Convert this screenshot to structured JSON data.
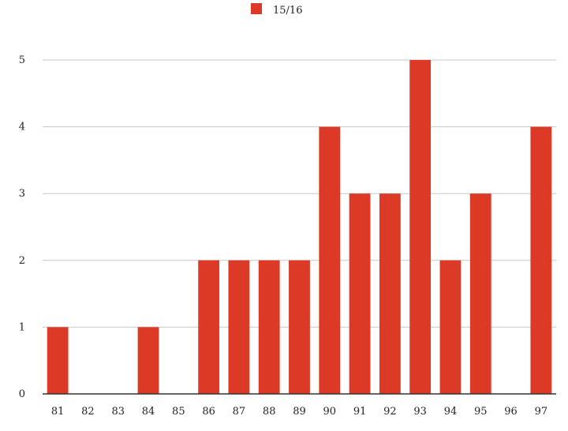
{
  "chart_data": {
    "type": "bar",
    "categories": [
      "81",
      "82",
      "83",
      "84",
      "85",
      "86",
      "87",
      "88",
      "89",
      "90",
      "91",
      "92",
      "93",
      "94",
      "95",
      "96",
      "97"
    ],
    "series": [
      {
        "name": "15/16",
        "values": [
          1,
          0,
          0,
          1,
          0,
          2,
          2,
          2,
          2,
          4,
          3,
          3,
          5,
          2,
          3,
          0,
          4
        ],
        "color": "#dc3a26"
      }
    ],
    "yticks": [
      0,
      1,
      2,
      3,
      4,
      5
    ],
    "ylim": [
      0,
      5
    ],
    "grid": true,
    "legend_position": "top-center",
    "gridline_color": "#c8c8c8",
    "axis_color": "#333333"
  }
}
